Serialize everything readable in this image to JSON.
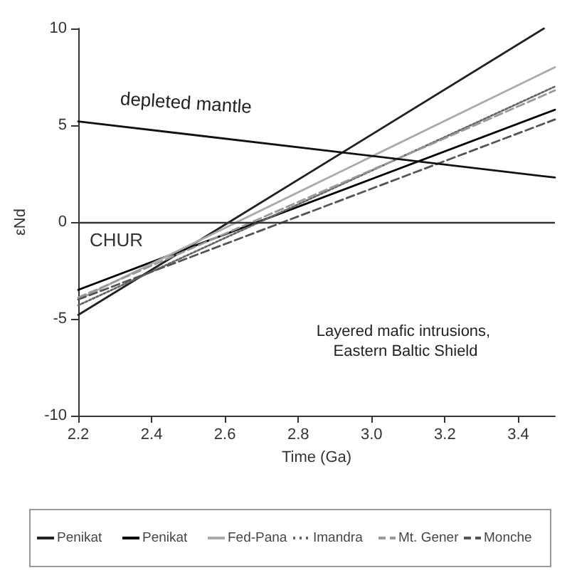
{
  "chart_data": {
    "type": "line",
    "xlabel": "Time (Ga)",
    "ylabel": "εNd",
    "xlim": [
      2.2,
      3.5
    ],
    "xticks": [
      2.2,
      2.4,
      2.6,
      2.8,
      {
        "value": 3,
        "label": "3.0"
      },
      3.2,
      3.4
    ],
    "ylim": [
      -10,
      10
    ],
    "yticks": [
      -10,
      -5,
      0,
      5,
      10
    ],
    "grid": false,
    "legend": "bottom",
    "marker": "none",
    "series": [
      {
        "name": "Penikat",
        "color": "#222222",
        "line_style": "solid",
        "x": [
          2.2,
          3.47
        ],
        "values": [
          -4.8,
          10
        ]
      },
      {
        "name": "Penikat",
        "color": "#000000",
        "line_style": "solid",
        "x": [
          2.2,
          3.5
        ],
        "values": [
          -3.5,
          5.8
        ]
      },
      {
        "name": "Fed-Pana",
        "color": "#aaaaaa",
        "line_style": "solid",
        "x": [
          2.2,
          3.5
        ],
        "values": [
          -4.0,
          8.0
        ]
      },
      {
        "name": "Imandra",
        "color": "#666666",
        "line_style": "dotted",
        "x": [
          2.2,
          3.5
        ],
        "values": [
          -4.3,
          7.0
        ]
      },
      {
        "name": "Mt. Gener",
        "color": "#999999",
        "line_style": "dashed",
        "x": [
          2.2,
          3.5
        ],
        "values": [
          -3.9,
          6.8
        ]
      },
      {
        "name": "Monche",
        "color": "#555555",
        "line_style": "dashed",
        "x": [
          2.2,
          3.5
        ],
        "values": [
          -4.0,
          5.3
        ]
      },
      {
        "color": "#111111",
        "line_style": "solid",
        "x": [
          2.2,
          3.5
        ],
        "values": [
          5.2,
          2.3
        ]
      }
    ],
    "ref_lines": [
      {
        "axis": "y",
        "value": 0,
        "label": "CHUR",
        "color": "#333333"
      }
    ],
    "annotations": [
      "depleted mantle",
      "Layered mafic intrusions, Eastern Baltic Shield"
    ]
  }
}
